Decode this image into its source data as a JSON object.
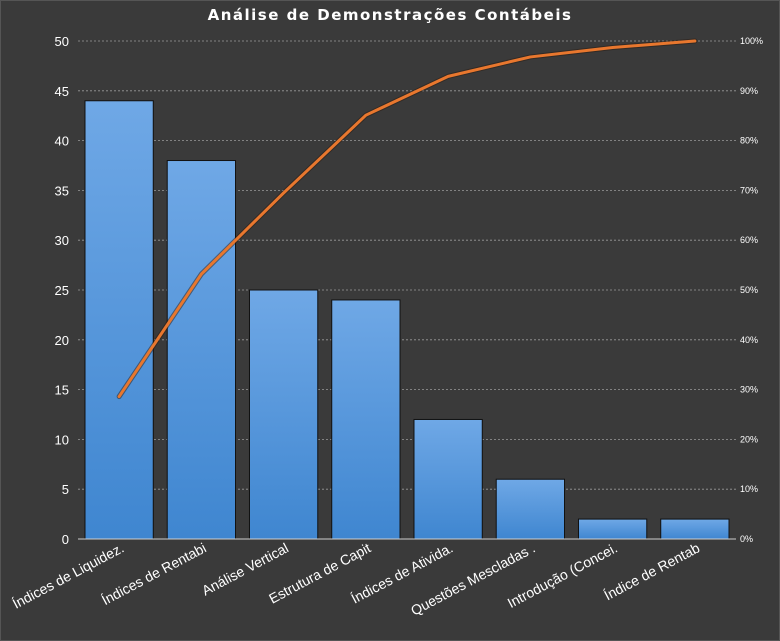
{
  "chart_data": {
    "type": "bar",
    "title": "Análise de Demonstrações Contábeis",
    "categories": [
      "Índices de Liquidez.",
      "Índices de Rentabi",
      "Análise Vertical",
      "Estrutura de Capit",
      "Índices de Ativida.",
      "Questões Mescladas .",
      "Introdução (Concei.",
      "Índice de Rentab"
    ],
    "values": [
      44,
      38,
      25,
      24,
      12,
      6,
      2,
      2
    ],
    "cumulative_percent": [
      28.6,
      53.2,
      69.5,
      85.1,
      92.9,
      96.8,
      98.7,
      100
    ],
    "ylim": [
      0,
      50
    ],
    "y_ticks": [
      0,
      5,
      10,
      15,
      20,
      25,
      30,
      35,
      40,
      45,
      50
    ],
    "y2lim": [
      0,
      100
    ],
    "y2_ticks": [
      "0%",
      "10%",
      "20%",
      "30%",
      "40%",
      "50%",
      "60%",
      "70%",
      "80%",
      "90%",
      "100%"
    ],
    "grid": "horizontal-dashed",
    "colors": {
      "bar": "#4a8fd8",
      "bar_top": "#6aa6e6",
      "line": "#e8772e",
      "background": "#3a3a3a",
      "grid": "#9a9a9a"
    }
  }
}
